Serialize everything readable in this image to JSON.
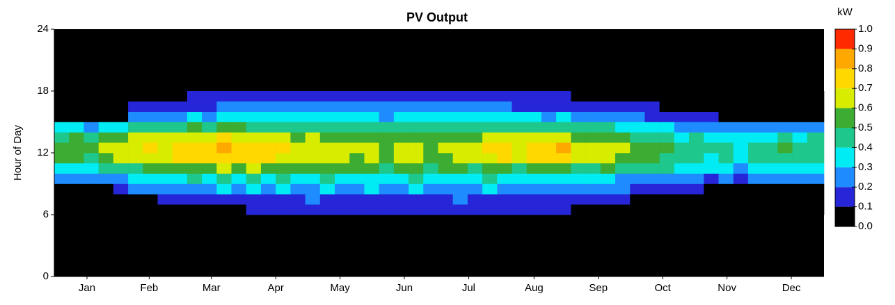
{
  "chart_data": {
    "type": "heatmap",
    "title": "PV Output",
    "ylabel": "Hour of Day",
    "colorbar_label": "kW",
    "xlim": [
      0,
      365
    ],
    "xticks": [
      {
        "value": 15.5,
        "label": "Jan"
      },
      {
        "value": 45,
        "label": "Feb"
      },
      {
        "value": 74.5,
        "label": "Mar"
      },
      {
        "value": 105,
        "label": "Apr"
      },
      {
        "value": 135.5,
        "label": "May"
      },
      {
        "value": 166,
        "label": "Jun"
      },
      {
        "value": 196.5,
        "label": "Jul"
      },
      {
        "value": 227.5,
        "label": "Aug"
      },
      {
        "value": 258,
        "label": "Sep"
      },
      {
        "value": 288.5,
        "label": "Oct"
      },
      {
        "value": 319,
        "label": "Nov"
      },
      {
        "value": 349.5,
        "label": "Dec"
      }
    ],
    "ylim": [
      0,
      24
    ],
    "yticks": [
      0,
      6,
      12,
      18,
      24
    ],
    "clim": [
      0,
      1
    ],
    "cticks": [
      {
        "value": 0,
        "label": "0.0"
      },
      {
        "value": 0.1,
        "label": "0.1"
      },
      {
        "value": 0.2,
        "label": "0.2"
      },
      {
        "value": 0.3,
        "label": "0.3"
      },
      {
        "value": 0.4,
        "label": "0.4"
      },
      {
        "value": 0.5,
        "label": "0.5"
      },
      {
        "value": 0.6,
        "label": "0.6"
      },
      {
        "value": 0.7,
        "label": "0.7"
      },
      {
        "value": 0.8,
        "label": "0.8"
      },
      {
        "value": 0.9,
        "label": "0.9"
      },
      {
        "value": 1,
        "label": "1.0"
      }
    ],
    "colors": [
      "#000000",
      "#2626d8",
      "#1e8cff",
      "#00ecf4",
      "#1ec88c",
      "#3cac32",
      "#d8ec00",
      "#ffd800",
      "#ffa800",
      "#ff2a00"
    ],
    "x": [
      0,
      7,
      14,
      21,
      28,
      35,
      42,
      49,
      56,
      63,
      70,
      77,
      84,
      91,
      98,
      105,
      112,
      119,
      126,
      133,
      140,
      147,
      154,
      161,
      168,
      175,
      182,
      189,
      196,
      203,
      210,
      217,
      224,
      231,
      238,
      245,
      252,
      259,
      266,
      273,
      280,
      287,
      294,
      301,
      308,
      315,
      322,
      329,
      336,
      343,
      350,
      357
    ],
    "y": [
      6,
      7,
      8,
      9,
      10,
      11,
      12,
      13,
      14,
      15,
      16,
      17
    ],
    "values": [
      [
        0,
        0,
        0,
        0,
        0,
        0,
        0,
        0,
        0,
        0,
        0,
        0,
        0,
        0.12,
        0.13,
        0.11,
        0.14,
        0.12,
        0.13,
        0.15,
        0.12,
        0.14,
        0.13,
        0.12,
        0.14,
        0.13,
        0.12,
        0.14,
        0.13,
        0.12,
        0.13,
        0.14,
        0.12,
        0.11,
        0.12,
        0,
        0,
        0,
        0,
        0,
        0,
        0,
        0,
        0,
        0,
        0,
        0,
        0,
        0,
        0,
        0,
        0
      ],
      [
        0,
        0,
        0,
        0,
        0,
        0,
        0,
        0.11,
        0.14,
        0.16,
        0.15,
        0.17,
        0.16,
        0.18,
        0.17,
        0.19,
        0.18,
        0.2,
        0.17,
        0.19,
        0.18,
        0.17,
        0.19,
        0.18,
        0.17,
        0.19,
        0.18,
        0.2,
        0.18,
        0.17,
        0.19,
        0.18,
        0.17,
        0.16,
        0.18,
        0.15,
        0.14,
        0.13,
        0.12,
        0,
        0,
        0,
        0,
        0,
        0,
        0,
        0,
        0,
        0,
        0,
        0,
        0
      ],
      [
        0,
        0,
        0,
        0,
        0.18,
        0.2,
        0.22,
        0.24,
        0.26,
        0.28,
        0.27,
        0.3,
        0.28,
        0.31,
        0.29,
        0.3,
        0.27,
        0.29,
        0.3,
        0.26,
        0.28,
        0.3,
        0.27,
        0.29,
        0.3,
        0.26,
        0.28,
        0.29,
        0.27,
        0.3,
        0.28,
        0.26,
        0.27,
        0.25,
        0.28,
        0.24,
        0.22,
        0.23,
        0.2,
        0.19,
        0.18,
        0.16,
        0.15,
        0.14,
        0,
        0,
        0,
        0,
        0,
        0,
        0,
        0
      ],
      [
        0.2,
        0.22,
        0.21,
        0.23,
        0.28,
        0.3,
        0.32,
        0.34,
        0.38,
        0.4,
        0.37,
        0.41,
        0.39,
        0.42,
        0.38,
        0.4,
        0.36,
        0.38,
        0.4,
        0.35,
        0.37,
        0.39,
        0.36,
        0.38,
        0.4,
        0.35,
        0.37,
        0.39,
        0.36,
        0.4,
        0.38,
        0.35,
        0.37,
        0.34,
        0.38,
        0.33,
        0.31,
        0.32,
        0.29,
        0.28,
        0.26,
        0.24,
        0.22,
        0.23,
        0.18,
        0.2,
        0.19,
        0.21,
        0.2,
        0.22,
        0.21,
        0.2
      ],
      [
        0.35,
        0.38,
        0.33,
        0.4,
        0.45,
        0.48,
        0.52,
        0.5,
        0.55,
        0.58,
        0.54,
        0.6,
        0.57,
        0.6,
        0.55,
        0.58,
        0.52,
        0.55,
        0.5,
        0.54,
        0.5,
        0.53,
        0.48,
        0.52,
        0.51,
        0.47,
        0.5,
        0.53,
        0.49,
        0.54,
        0.52,
        0.48,
        0.53,
        0.5,
        0.55,
        0.49,
        0.47,
        0.5,
        0.45,
        0.43,
        0.42,
        0.4,
        0.36,
        0.38,
        0.3,
        0.33,
        0.28,
        0.32,
        0.34,
        0.36,
        0.32,
        0.35
      ],
      [
        0.5,
        0.55,
        0.48,
        0.58,
        0.6,
        0.65,
        0.68,
        0.66,
        0.7,
        0.74,
        0.72,
        0.78,
        0.75,
        0.72,
        0.7,
        0.68,
        0.62,
        0.65,
        0.6,
        0.63,
        0.58,
        0.62,
        0.57,
        0.6,
        0.6,
        0.56,
        0.59,
        0.63,
        0.62,
        0.68,
        0.7,
        0.65,
        0.72,
        0.7,
        0.78,
        0.66,
        0.62,
        0.65,
        0.58,
        0.55,
        0.52,
        0.48,
        0.42,
        0.45,
        0.38,
        0.42,
        0.35,
        0.4,
        0.45,
        0.48,
        0.44,
        0.47
      ],
      [
        0.52,
        0.58,
        0.5,
        0.6,
        0.62,
        0.68,
        0.7,
        0.67,
        0.72,
        0.76,
        0.74,
        0.8,
        0.77,
        0.74,
        0.72,
        0.7,
        0.64,
        0.66,
        0.61,
        0.65,
        0.6,
        0.63,
        0.58,
        0.62,
        0.61,
        0.57,
        0.6,
        0.64,
        0.64,
        0.7,
        0.72,
        0.67,
        0.74,
        0.72,
        0.81,
        0.68,
        0.64,
        0.66,
        0.6,
        0.57,
        0.53,
        0.5,
        0.44,
        0.46,
        0.4,
        0.43,
        0.36,
        0.41,
        0.46,
        0.5,
        0.45,
        0.48
      ],
      [
        0.45,
        0.5,
        0.44,
        0.52,
        0.56,
        0.6,
        0.62,
        0.6,
        0.65,
        0.68,
        0.66,
        0.7,
        0.68,
        0.66,
        0.64,
        0.62,
        0.58,
        0.6,
        0.56,
        0.59,
        0.55,
        0.58,
        0.53,
        0.57,
        0.56,
        0.52,
        0.55,
        0.58,
        0.58,
        0.62,
        0.64,
        0.6,
        0.64,
        0.62,
        0.68,
        0.58,
        0.55,
        0.57,
        0.5,
        0.48,
        0.45,
        0.42,
        0.37,
        0.4,
        0.33,
        0.36,
        0.3,
        0.35,
        0.38,
        0.42,
        0.37,
        0.4
      ],
      [
        0.3,
        0.33,
        0.28,
        0.35,
        0.38,
        0.42,
        0.45,
        0.44,
        0.48,
        0.5,
        0.49,
        0.52,
        0.5,
        0.48,
        0.47,
        0.46,
        0.44,
        0.46,
        0.42,
        0.45,
        0.42,
        0.44,
        0.4,
        0.43,
        0.43,
        0.4,
        0.42,
        0.44,
        0.43,
        0.46,
        0.47,
        0.44,
        0.46,
        0.44,
        0.48,
        0.42,
        0.4,
        0.41,
        0.36,
        0.35,
        0.32,
        0.3,
        0.27,
        0.28,
        0.22,
        0.25,
        0.2,
        0.24,
        0.26,
        0.28,
        0.25,
        0.27
      ],
      [
        0,
        0,
        0,
        0,
        0,
        0.2,
        0.22,
        0.24,
        0.27,
        0.3,
        0.29,
        0.32,
        0.31,
        0.3,
        0.32,
        0.33,
        0.31,
        0.33,
        0.3,
        0.32,
        0.3,
        0.32,
        0.29,
        0.31,
        0.32,
        0.3,
        0.31,
        0.33,
        0.31,
        0.32,
        0.33,
        0.3,
        0.31,
        0.29,
        0.3,
        0.27,
        0.25,
        0.24,
        0.22,
        0.2,
        0.18,
        0.16,
        0.15,
        0.14,
        0.12,
        0,
        0,
        0,
        0,
        0,
        0,
        0
      ],
      [
        0,
        0,
        0,
        0,
        0,
        0.12,
        0.14,
        0.15,
        0.17,
        0.19,
        0.18,
        0.2,
        0.21,
        0.2,
        0.22,
        0.23,
        0.21,
        0.22,
        0.2,
        0.23,
        0.22,
        0.24,
        0.21,
        0.23,
        0.24,
        0.22,
        0.23,
        0.25,
        0.22,
        0.21,
        0.2,
        0.19,
        0.18,
        0.17,
        0.16,
        0.15,
        0.14,
        0.13,
        0.12,
        0.11,
        0.11,
        0,
        0,
        0,
        0,
        0,
        0,
        0,
        0,
        0,
        0,
        0
      ],
      [
        0,
        0,
        0,
        0,
        0,
        0,
        0,
        0,
        0,
        0.11,
        0.12,
        0.12,
        0.13,
        0.14,
        0.13,
        0.14,
        0.15,
        0.14,
        0.15,
        0.16,
        0.15,
        0.16,
        0.15,
        0.16,
        0.15,
        0.14,
        0.15,
        0.14,
        0.13,
        0.14,
        0.13,
        0.12,
        0.12,
        0.11,
        0.12,
        0,
        0,
        0,
        0,
        0,
        0,
        0,
        0,
        0,
        0,
        0,
        0,
        0,
        0,
        0,
        0,
        0
      ]
    ]
  }
}
